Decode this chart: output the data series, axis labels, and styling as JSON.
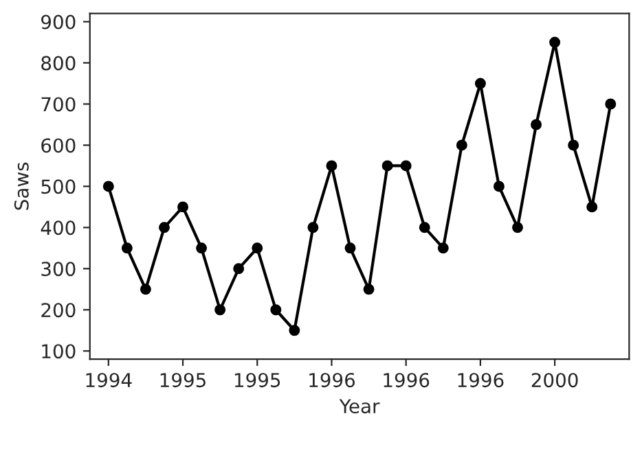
{
  "chart_data": {
    "type": "line",
    "xlabel": "Year",
    "ylabel": "Saws",
    "categories": [
      "1994",
      null,
      null,
      null,
      "1995",
      null,
      null,
      null,
      "1995",
      null,
      null,
      null,
      "1996",
      null,
      null,
      null,
      "1996",
      null,
      null,
      null,
      "1996",
      null,
      null,
      null,
      "2000",
      null,
      null,
      null
    ],
    "series": [
      {
        "color": "#000000",
        "values": [
          500,
          350,
          250,
          400,
          450,
          350,
          200,
          300,
          350,
          200,
          150,
          400,
          550,
          350,
          250,
          550,
          550,
          400,
          350,
          600,
          750,
          500,
          400,
          650,
          850,
          600,
          450,
          700
        ]
      }
    ],
    "ylim": [
      80,
      920
    ],
    "yticks": [
      100,
      200,
      300,
      400,
      500,
      600,
      700,
      800,
      900
    ],
    "marker": "circle",
    "line_style": "solid",
    "grid": false,
    "legend": false
  }
}
